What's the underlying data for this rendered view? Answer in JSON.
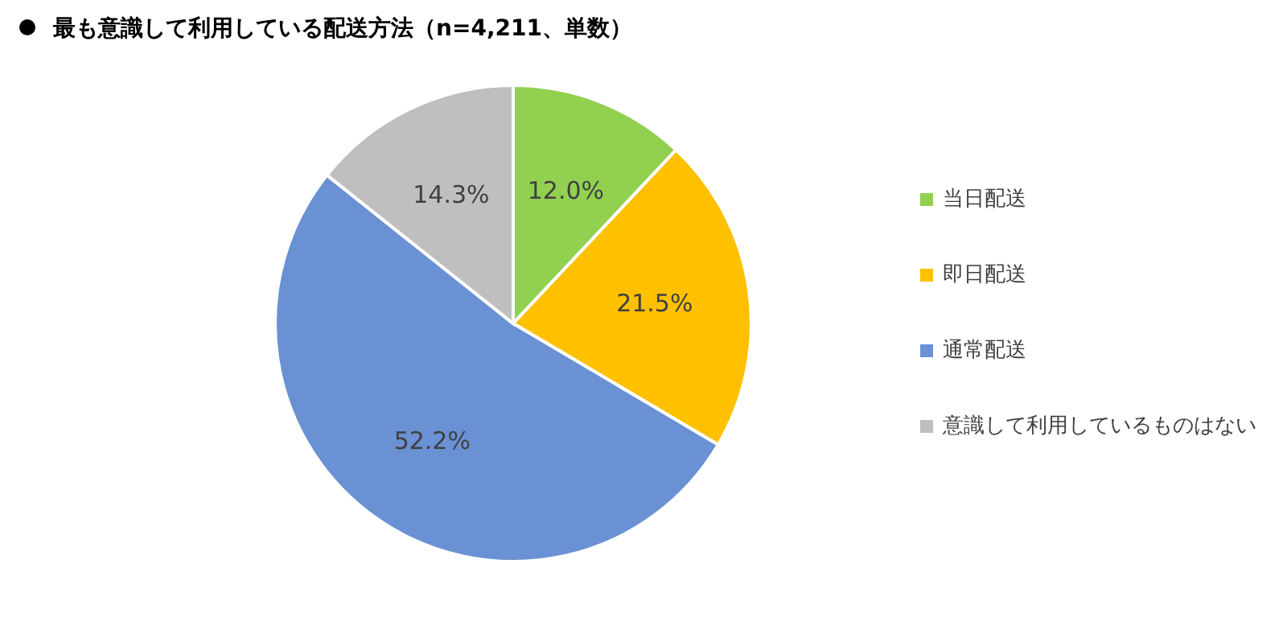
{
  "chart_data": {
    "type": "pie",
    "title": "最も意識して利用している配送方法（n=4,211、単数）",
    "categories": [
      "当日配送",
      "即日配送",
      "通常配送",
      "意識して利用しているものはない"
    ],
    "values": [
      12.0,
      21.5,
      52.2,
      14.3
    ],
    "colors": [
      "#92d050",
      "#ffc000",
      "#6a91d3",
      "#bfbfbf"
    ],
    "value_labels": [
      "12.0%",
      "21.5%",
      "52.2%",
      "14.3%"
    ],
    "legend": "right"
  }
}
